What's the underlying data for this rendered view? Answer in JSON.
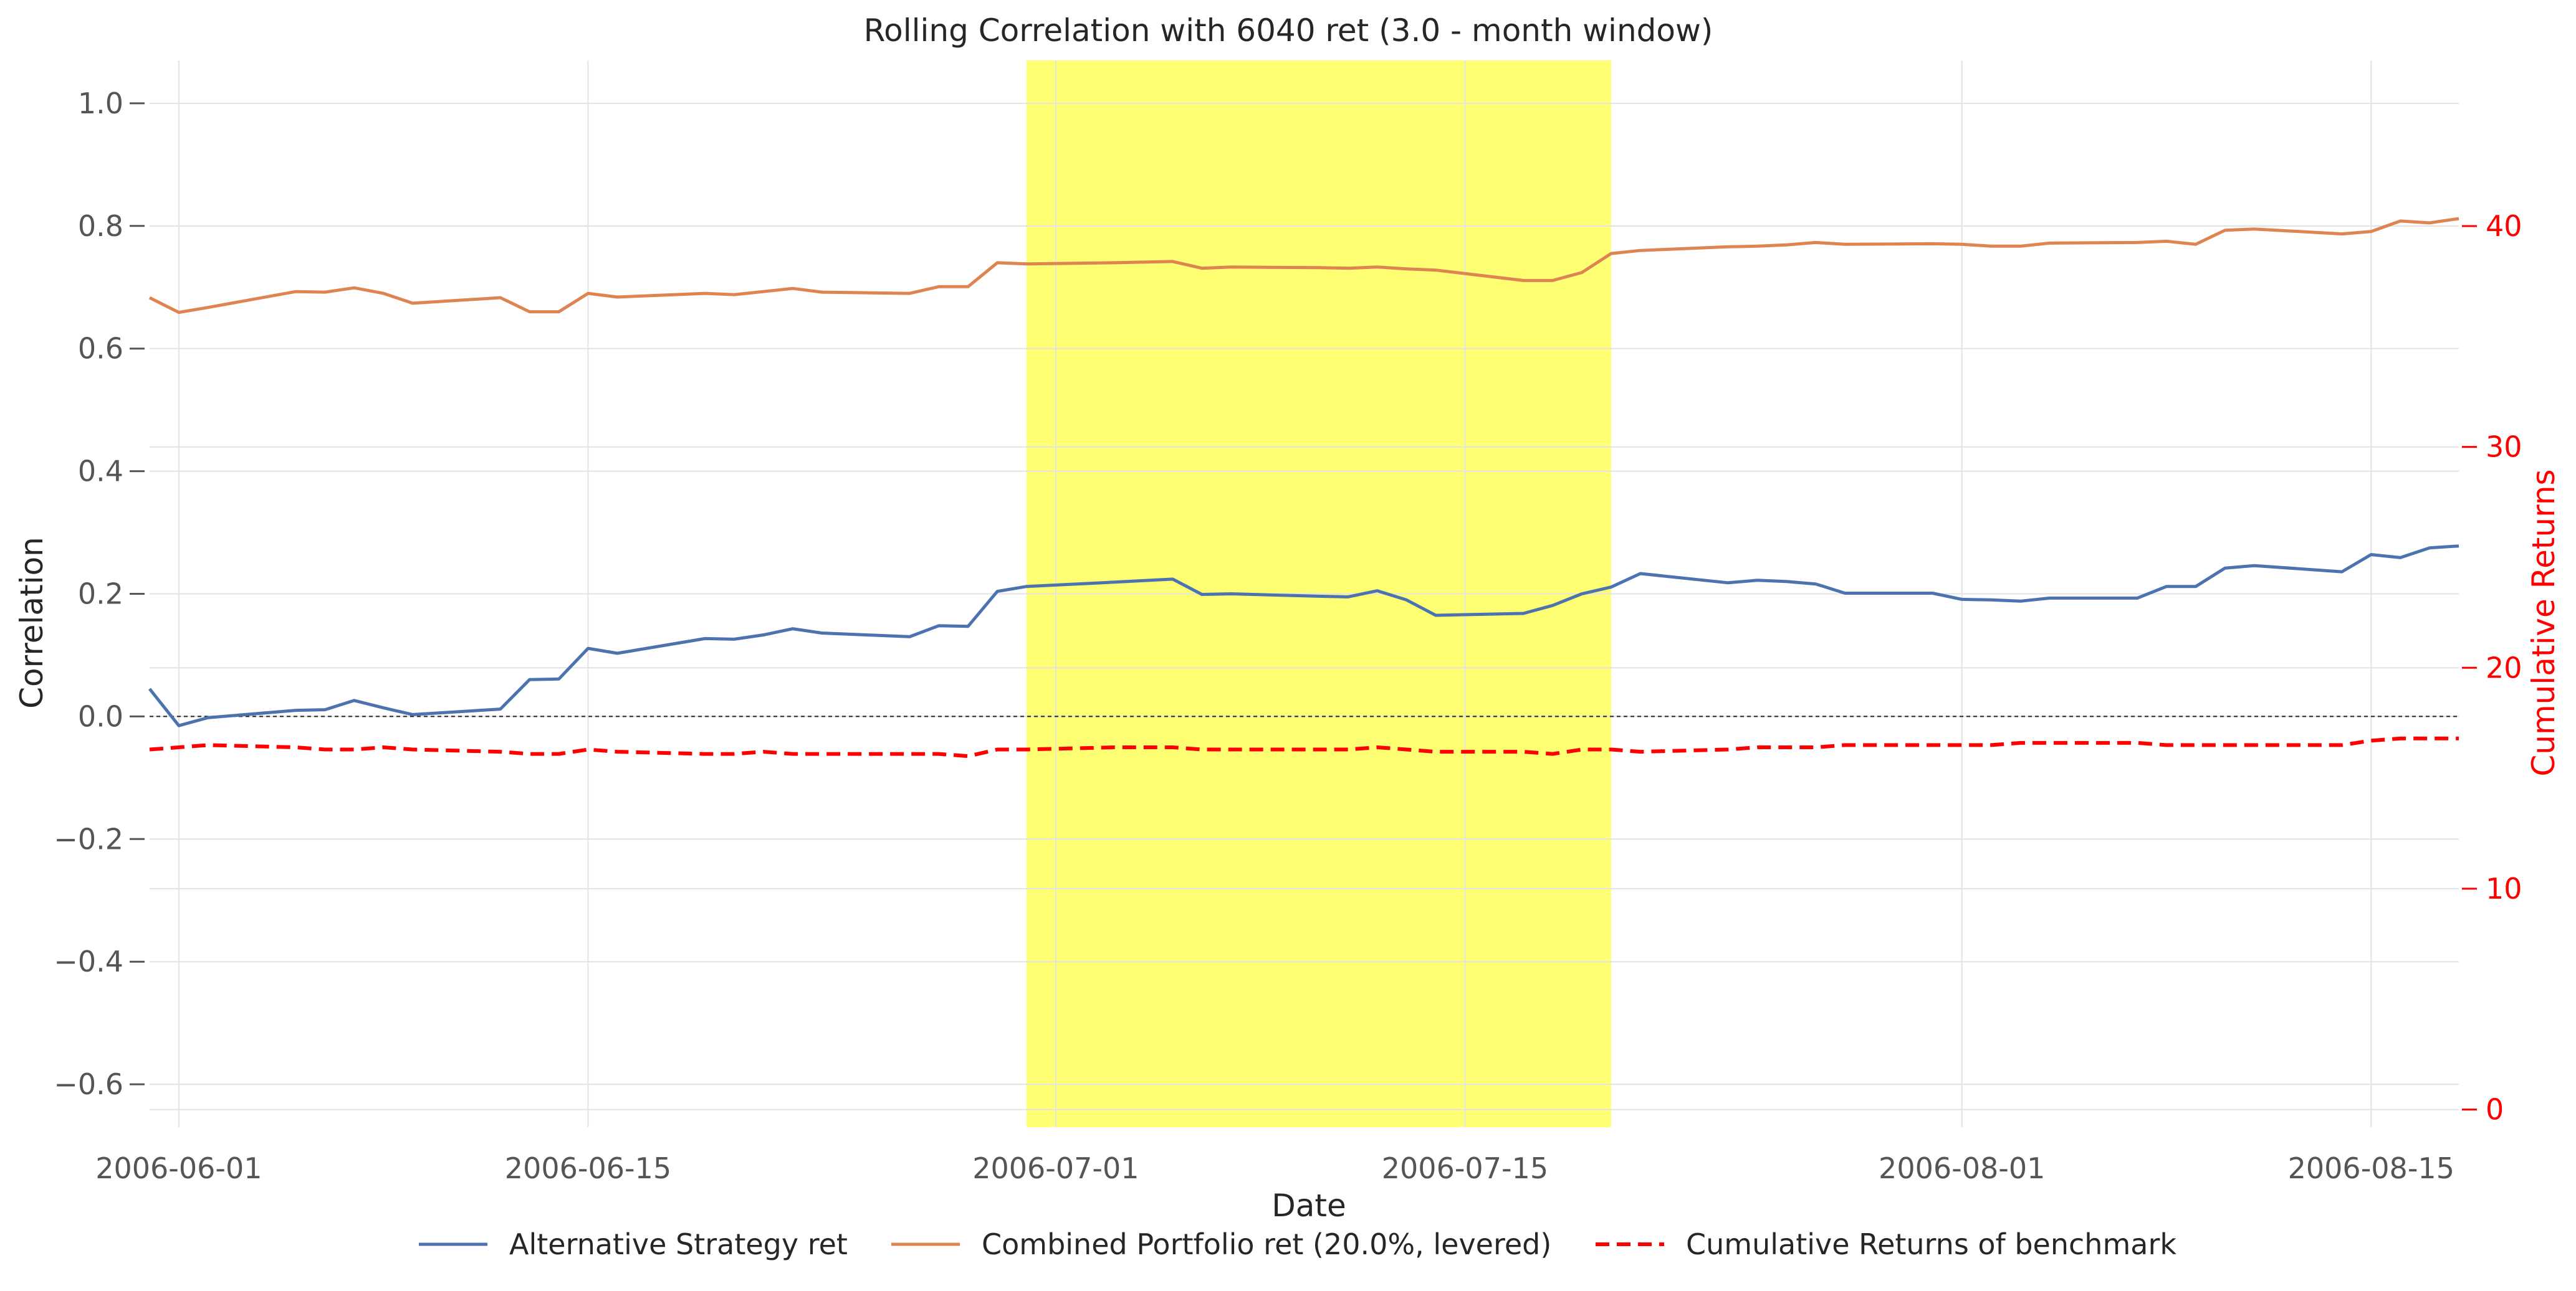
{
  "chart_data": {
    "type": "line",
    "title": "Rolling Correlation with 6040 ret (3.0 - month window)",
    "xlabel": "Date",
    "ylabel": "Correlation",
    "y2label": "Cumulative Returns",
    "x_ticks": [
      "2006-06-01",
      "2006-06-15",
      "2006-07-01",
      "2006-07-15",
      "2006-08-01",
      "2006-08-15"
    ],
    "y_ticks": [
      "1.0",
      "0.8",
      "0.6",
      "0.4",
      "0.2",
      "0.0",
      "−0.2",
      "−0.4",
      "−0.6"
    ],
    "y2_ticks": [
      "40",
      "30",
      "20",
      "10",
      "0"
    ],
    "ylim": [
      -0.67,
      1.07
    ],
    "y2lim": [
      -0.8,
      47.5
    ],
    "xlim": [
      "2006-05-31",
      "2006-08-18"
    ],
    "grid": true,
    "zero_line": 0.0,
    "highlight": {
      "start": "2006-06-30",
      "end": "2006-07-20",
      "color": "#ffff00"
    },
    "legend_position": "bottom",
    "colors": {
      "alt": "#4c72b0",
      "combined": "#dd8452",
      "benchmark": "#ff0000"
    },
    "series": [
      {
        "name": "Alternative Strategy ret",
        "axis": "left",
        "x": [
          "2006-05-31",
          "2006-06-01",
          "2006-06-02",
          "2006-06-05",
          "2006-06-06",
          "2006-06-07",
          "2006-06-08",
          "2006-06-09",
          "2006-06-12",
          "2006-06-13",
          "2006-06-14",
          "2006-06-15",
          "2006-06-16",
          "2006-06-19",
          "2006-06-20",
          "2006-06-21",
          "2006-06-22",
          "2006-06-23",
          "2006-06-26",
          "2006-06-27",
          "2006-06-28",
          "2006-06-29",
          "2006-06-30",
          "2006-07-03",
          "2006-07-05",
          "2006-07-06",
          "2006-07-07",
          "2006-07-10",
          "2006-07-11",
          "2006-07-12",
          "2006-07-13",
          "2006-07-14",
          "2006-07-17",
          "2006-07-18",
          "2006-07-19",
          "2006-07-20",
          "2006-07-21",
          "2006-07-24",
          "2006-07-25",
          "2006-07-26",
          "2006-07-27",
          "2006-07-28",
          "2006-07-31",
          "2006-08-01",
          "2006-08-02",
          "2006-08-03",
          "2006-08-04",
          "2006-08-07",
          "2006-08-08",
          "2006-08-09",
          "2006-08-10",
          "2006-08-11",
          "2006-08-14",
          "2006-08-15",
          "2006-08-16",
          "2006-08-17",
          "2006-08-18"
        ],
        "values": [
          0.045,
          -0.015,
          -0.002,
          0.01,
          0.011,
          0.026,
          0.014,
          0.003,
          0.012,
          0.06,
          0.061,
          0.111,
          0.103,
          0.127,
          0.126,
          0.133,
          0.143,
          0.136,
          0.13,
          0.148,
          0.147,
          0.204,
          0.212,
          0.219,
          0.224,
          0.199,
          0.2,
          0.196,
          0.195,
          0.205,
          0.19,
          0.165,
          0.168,
          0.181,
          0.2,
          0.211,
          0.233,
          0.218,
          0.222,
          0.22,
          0.216,
          0.201,
          0.201,
          0.191,
          0.19,
          0.188,
          0.193,
          0.193,
          0.212,
          0.212,
          0.242,
          0.246,
          0.236,
          0.264,
          0.259,
          0.275,
          0.278
        ]
      },
      {
        "name": "Combined Portfolio ret (20.0%, levered)",
        "axis": "left",
        "x": [
          "2006-05-31",
          "2006-06-01",
          "2006-06-02",
          "2006-06-05",
          "2006-06-06",
          "2006-06-07",
          "2006-06-08",
          "2006-06-09",
          "2006-06-12",
          "2006-06-13",
          "2006-06-14",
          "2006-06-15",
          "2006-06-16",
          "2006-06-19",
          "2006-06-20",
          "2006-06-21",
          "2006-06-22",
          "2006-06-23",
          "2006-06-26",
          "2006-06-27",
          "2006-06-28",
          "2006-06-29",
          "2006-06-30",
          "2006-07-03",
          "2006-07-05",
          "2006-07-06",
          "2006-07-07",
          "2006-07-10",
          "2006-07-11",
          "2006-07-12",
          "2006-07-13",
          "2006-07-14",
          "2006-07-17",
          "2006-07-18",
          "2006-07-19",
          "2006-07-20",
          "2006-07-21",
          "2006-07-24",
          "2006-07-25",
          "2006-07-26",
          "2006-07-27",
          "2006-07-28",
          "2006-07-31",
          "2006-08-01",
          "2006-08-02",
          "2006-08-03",
          "2006-08-04",
          "2006-08-07",
          "2006-08-08",
          "2006-08-09",
          "2006-08-10",
          "2006-08-11",
          "2006-08-14",
          "2006-08-15",
          "2006-08-16",
          "2006-08-17",
          "2006-08-18"
        ],
        "values": [
          0.683,
          0.659,
          0.667,
          0.693,
          0.692,
          0.699,
          0.69,
          0.674,
          0.683,
          0.66,
          0.66,
          0.69,
          0.684,
          0.69,
          0.688,
          0.693,
          0.698,
          0.692,
          0.69,
          0.701,
          0.701,
          0.74,
          0.738,
          0.74,
          0.742,
          0.731,
          0.733,
          0.732,
          0.731,
          0.733,
          0.73,
          0.728,
          0.711,
          0.711,
          0.724,
          0.755,
          0.76,
          0.766,
          0.767,
          0.769,
          0.773,
          0.77,
          0.771,
          0.77,
          0.767,
          0.767,
          0.772,
          0.773,
          0.775,
          0.77,
          0.793,
          0.795,
          0.787,
          0.791,
          0.808,
          0.805,
          0.812
        ]
      },
      {
        "name": "Cumulative Returns of benchmark",
        "axis": "right",
        "dashed": true,
        "x": [
          "2006-05-31",
          "2006-06-01",
          "2006-06-02",
          "2006-06-05",
          "2006-06-06",
          "2006-06-07",
          "2006-06-08",
          "2006-06-09",
          "2006-06-12",
          "2006-06-13",
          "2006-06-14",
          "2006-06-15",
          "2006-06-16",
          "2006-06-19",
          "2006-06-20",
          "2006-06-21",
          "2006-06-22",
          "2006-06-23",
          "2006-06-26",
          "2006-06-27",
          "2006-06-28",
          "2006-06-29",
          "2006-06-30",
          "2006-07-03",
          "2006-07-05",
          "2006-07-06",
          "2006-07-07",
          "2006-07-10",
          "2006-07-11",
          "2006-07-12",
          "2006-07-13",
          "2006-07-14",
          "2006-07-17",
          "2006-07-18",
          "2006-07-19",
          "2006-07-20",
          "2006-07-21",
          "2006-07-24",
          "2006-07-25",
          "2006-07-26",
          "2006-07-27",
          "2006-07-28",
          "2006-07-31",
          "2006-08-01",
          "2006-08-02",
          "2006-08-03",
          "2006-08-04",
          "2006-08-07",
          "2006-08-08",
          "2006-08-09",
          "2006-08-10",
          "2006-08-11",
          "2006-08-14",
          "2006-08-15",
          "2006-08-16",
          "2006-08-17",
          "2006-08-18"
        ],
        "values": [
          16.3,
          16.4,
          16.5,
          16.4,
          16.3,
          16.3,
          16.4,
          16.3,
          16.2,
          16.1,
          16.1,
          16.3,
          16.2,
          16.1,
          16.1,
          16.2,
          16.1,
          16.1,
          16.1,
          16.1,
          16.0,
          16.3,
          16.3,
          16.4,
          16.4,
          16.3,
          16.3,
          16.3,
          16.3,
          16.4,
          16.3,
          16.2,
          16.2,
          16.1,
          16.3,
          16.3,
          16.2,
          16.3,
          16.4,
          16.4,
          16.4,
          16.5,
          16.5,
          16.5,
          16.5,
          16.6,
          16.6,
          16.6,
          16.5,
          16.5,
          16.5,
          16.5,
          16.5,
          16.7,
          16.8,
          16.8,
          16.8
        ]
      }
    ]
  }
}
